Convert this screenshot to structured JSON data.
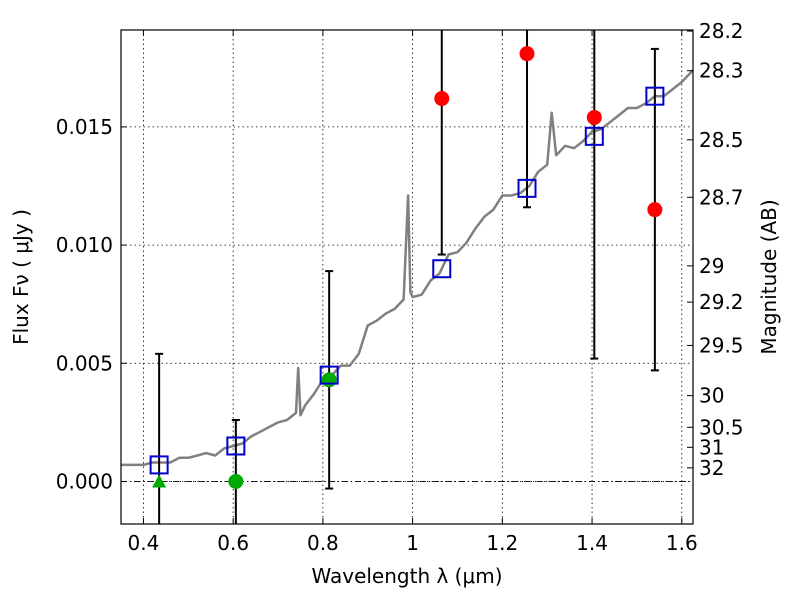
{
  "chart_data": {
    "type": "scatter",
    "xlabel": "Wavelength  λ (μm)",
    "ylabel_left": "Flux  Fν  ( μJy )",
    "ylabel_right": "Magnitude (AB)",
    "xlim": [
      0.35,
      1.625
    ],
    "ylim": [
      -0.0018,
      0.0191
    ],
    "grid": true,
    "x_ticks": [
      {
        "value": 0.4,
        "label": "0.4"
      },
      {
        "value": 0.6,
        "label": "0.6"
      },
      {
        "value": 0.8,
        "label": "0.8"
      },
      {
        "value": 1.0,
        "label": "1"
      },
      {
        "value": 1.2,
        "label": "1.2"
      },
      {
        "value": 1.4,
        "label": "1.4"
      },
      {
        "value": 1.6,
        "label": "1.6"
      }
    ],
    "y_ticks": [
      {
        "value": 0.0,
        "label": "0.000"
      },
      {
        "value": 0.005,
        "label": "0.005"
      },
      {
        "value": 0.01,
        "label": "0.010"
      },
      {
        "value": 0.015,
        "label": "0.015"
      }
    ],
    "mag_ticks": [
      {
        "mag": 28.2,
        "label": "28.2"
      },
      {
        "mag": 28.3,
        "label": "28.3"
      },
      {
        "mag": 28.5,
        "label": "28.5"
      },
      {
        "mag": 28.7,
        "label": "28.7"
      },
      {
        "mag": 29.0,
        "label": "29"
      },
      {
        "mag": 29.2,
        "label": "29.2"
      },
      {
        "mag": 29.5,
        "label": "29.5"
      },
      {
        "mag": 30.0,
        "label": "30"
      },
      {
        "mag": 30.5,
        "label": "30.5"
      },
      {
        "mag": 31.0,
        "label": "31"
      },
      {
        "mag": 32.0,
        "label": "32"
      }
    ],
    "model_spectrum": {
      "color": "#808080",
      "points": [
        [
          0.35,
          0.0007
        ],
        [
          0.38,
          0.0007
        ],
        [
          0.4,
          0.0007
        ],
        [
          0.42,
          0.0008
        ],
        [
          0.44,
          0.0008
        ],
        [
          0.46,
          0.0008
        ],
        [
          0.48,
          0.001
        ],
        [
          0.5,
          0.001
        ],
        [
          0.52,
          0.0011
        ],
        [
          0.54,
          0.0012
        ],
        [
          0.56,
          0.0011
        ],
        [
          0.58,
          0.0014
        ],
        [
          0.6,
          0.0015
        ],
        [
          0.62,
          0.0016
        ],
        [
          0.64,
          0.0019
        ],
        [
          0.66,
          0.0021
        ],
        [
          0.68,
          0.0023
        ],
        [
          0.7,
          0.0025
        ],
        [
          0.72,
          0.0026
        ],
        [
          0.74,
          0.0029
        ],
        [
          0.745,
          0.0048
        ],
        [
          0.75,
          0.0028
        ],
        [
          0.76,
          0.0032
        ],
        [
          0.78,
          0.0037
        ],
        [
          0.8,
          0.0043
        ],
        [
          0.82,
          0.0045
        ],
        [
          0.84,
          0.0049
        ],
        [
          0.86,
          0.0049
        ],
        [
          0.88,
          0.0054
        ],
        [
          0.9,
          0.0066
        ],
        [
          0.92,
          0.0068
        ],
        [
          0.94,
          0.0071
        ],
        [
          0.96,
          0.0073
        ],
        [
          0.98,
          0.0077
        ],
        [
          0.99,
          0.0121
        ],
        [
          0.995,
          0.008
        ],
        [
          1.0,
          0.0078
        ],
        [
          1.02,
          0.0079
        ],
        [
          1.04,
          0.0085
        ],
        [
          1.06,
          0.0088
        ],
        [
          1.08,
          0.0096
        ],
        [
          1.1,
          0.0097
        ],
        [
          1.12,
          0.0101
        ],
        [
          1.14,
          0.0107
        ],
        [
          1.16,
          0.0112
        ],
        [
          1.18,
          0.0115
        ],
        [
          1.2,
          0.0121
        ],
        [
          1.22,
          0.0121
        ],
        [
          1.24,
          0.0122
        ],
        [
          1.26,
          0.0125
        ],
        [
          1.28,
          0.0131
        ],
        [
          1.3,
          0.0134
        ],
        [
          1.31,
          0.0156
        ],
        [
          1.32,
          0.0138
        ],
        [
          1.34,
          0.0142
        ],
        [
          1.36,
          0.0141
        ],
        [
          1.38,
          0.0144
        ],
        [
          1.4,
          0.0148
        ],
        [
          1.42,
          0.0149
        ],
        [
          1.44,
          0.0152
        ],
        [
          1.46,
          0.0155
        ],
        [
          1.48,
          0.0158
        ],
        [
          1.5,
          0.0158
        ],
        [
          1.52,
          0.016
        ],
        [
          1.54,
          0.0163
        ],
        [
          1.56,
          0.0163
        ],
        [
          1.58,
          0.0166
        ],
        [
          1.6,
          0.0169
        ],
        [
          1.625,
          0.0174
        ]
      ]
    },
    "model_photometry": {
      "marker": "open-square",
      "color": "#0000cc",
      "points": [
        {
          "x": 0.435,
          "y": 0.0007
        },
        {
          "x": 0.606,
          "y": 0.0015
        },
        {
          "x": 0.814,
          "y": 0.0045
        },
        {
          "x": 1.065,
          "y": 0.009
        },
        {
          "x": 1.255,
          "y": 0.0124
        },
        {
          "x": 1.405,
          "y": 0.0146
        },
        {
          "x": 1.54,
          "y": 0.0163
        }
      ]
    },
    "observed_photometry": [
      {
        "x": 0.435,
        "y": 0.0,
        "yerr": 0.0054,
        "marker": "triangle",
        "color": "#00aa00"
      },
      {
        "x": 0.606,
        "y": 0.0,
        "yerr": 0.0026,
        "marker": "circle",
        "color": "#00aa00"
      },
      {
        "x": 0.814,
        "y": 0.0043,
        "yerr": 0.0046,
        "marker": "circle",
        "color": "#00aa00"
      },
      {
        "x": 1.065,
        "y": 0.0162,
        "yerr": 0.0066,
        "marker": "circle",
        "color": "#ff0000"
      },
      {
        "x": 1.255,
        "y": 0.0181,
        "yerr": 0.0065,
        "marker": "circle",
        "color": "#ff0000"
      },
      {
        "x": 1.405,
        "y": 0.0154,
        "yerr": 0.0102,
        "marker": "circle",
        "color": "#ff0000"
      },
      {
        "x": 1.54,
        "y": 0.0115,
        "yerr": 0.0068,
        "marker": "circle",
        "color": "#ff0000"
      }
    ]
  }
}
